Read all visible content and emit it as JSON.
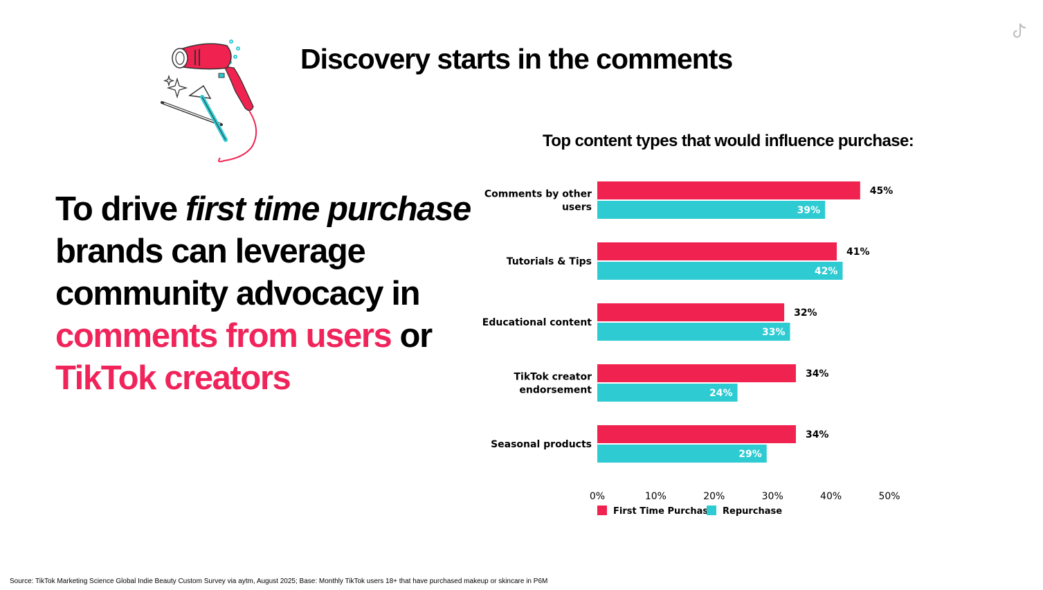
{
  "slide": {
    "title": "Discovery starts in the comments",
    "source": "Source: TikTok Marketing Science Global Indie Beauty Custom Survey via aytm, August 2025; Base: Monthly TikTok users 18+ that have purchased makeup or skincare in P6M"
  },
  "headline": {
    "part1": "To drive ",
    "part2": "first time purchase",
    "part3": " brands can leverage community advocacy in ",
    "part4": "comments from users",
    "part5": " or ",
    "part6": "TikTok creators"
  },
  "colors": {
    "first_time_purchase": "#f0224f",
    "repurchase": "#2ecbd3",
    "accent_text": "#f0245a"
  },
  "icons": [
    "hair-dryer-illustration",
    "tiktok-logo-icon"
  ],
  "chart_data": {
    "type": "bar",
    "orientation": "horizontal",
    "title": "Top content types that would influence purchase:",
    "categories": [
      [
        "Comments by other",
        "users"
      ],
      [
        "Tutorials & Tips"
      ],
      [
        "Educational content"
      ],
      [
        "TikTok creator",
        "endorsement"
      ],
      [
        "Seasonal products"
      ]
    ],
    "series": [
      {
        "name": "First Time Purchase",
        "values": [
          45,
          41,
          32,
          34,
          34
        ],
        "labels": [
          "45%",
          "41%",
          "32%",
          "34%",
          "34%"
        ],
        "label_position": "outside"
      },
      {
        "name": "Repurchase",
        "values": [
          39,
          42,
          33,
          24,
          29
        ],
        "labels": [
          "39%",
          "42%",
          "33%",
          "24%",
          "29%"
        ],
        "label_position": "inside"
      }
    ],
    "xlim": [
      0,
      50
    ],
    "x_ticks": [
      "0%",
      "10%",
      "20%",
      "30%",
      "40%",
      "50%"
    ],
    "grid": false,
    "legend": "bottom"
  }
}
